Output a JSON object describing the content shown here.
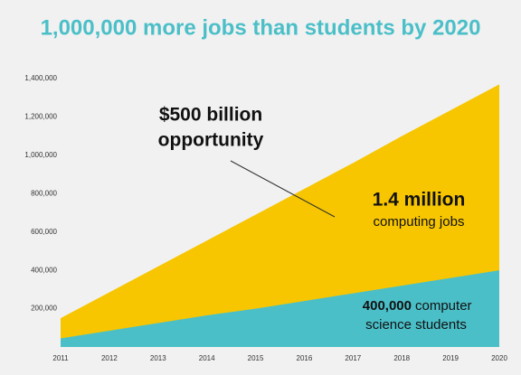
{
  "chart_data": {
    "type": "area",
    "title": "1,000,000 more jobs than students by 2020",
    "categories": [
      "2011",
      "2012",
      "2013",
      "2014",
      "2015",
      "2016",
      "2017",
      "2018",
      "2019",
      "2020"
    ],
    "series": [
      {
        "name": "computing jobs",
        "color": "#f7c600",
        "values": [
          150000,
          285000,
          420000,
          555000,
          690000,
          825000,
          960000,
          1100000,
          1235000,
          1370000
        ]
      },
      {
        "name": "computer science students",
        "color": "#4bbfc8",
        "values": [
          45000,
          85000,
          125000,
          165000,
          200000,
          240000,
          280000,
          320000,
          360000,
          400000
        ]
      }
    ],
    "ylim": [
      0,
      1400000
    ],
    "yticks": [
      {
        "value": 200000,
        "label": "200,000"
      },
      {
        "value": 400000,
        "label": "400,000"
      },
      {
        "value": 600000,
        "label": "600,000"
      },
      {
        "value": 800000,
        "label": "800,000"
      },
      {
        "value": 1000000,
        "label": "1,000,000"
      },
      {
        "value": 1200000,
        "label": "1,200,000"
      },
      {
        "value": 1400000,
        "label": "1,400,000"
      }
    ],
    "grid": false,
    "annotations": [
      "$500 billion",
      "opportunity",
      "1.4 million",
      "computing jobs",
      "400,000",
      "computer",
      "science students"
    ]
  }
}
